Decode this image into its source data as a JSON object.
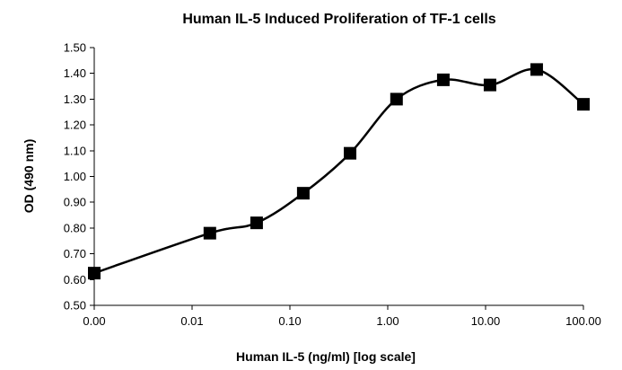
{
  "chart_data": {
    "type": "line",
    "title": "Human IL-5 Induced Proliferation of TF-1 cells",
    "xlabel": "Human IL-5 (ng/ml) [log scale]",
    "ylabel": "OD (490 nm)",
    "x_scale": "log",
    "x_tick_labels": [
      "0.00",
      "0.01",
      "0.10",
      "1.00",
      "10.00",
      "100.00"
    ],
    "y_tick_labels": [
      "0.50",
      "0.60",
      "0.70",
      "0.80",
      "0.90",
      "1.00",
      "1.10",
      "1.20",
      "1.30",
      "1.40",
      "1.50"
    ],
    "ylim": [
      0.5,
      1.5
    ],
    "grid": false,
    "legend": "none",
    "marker": "square",
    "smooth": true,
    "x": [
      0.001,
      0.0152,
      0.0457,
      0.137,
      0.412,
      1.23,
      3.7,
      11.1,
      33.3,
      100
    ],
    "series": [
      {
        "values": [
          0.625,
          0.78,
          0.82,
          0.935,
          1.09,
          1.3,
          1.375,
          1.355,
          1.415,
          1.28
        ]
      }
    ]
  }
}
